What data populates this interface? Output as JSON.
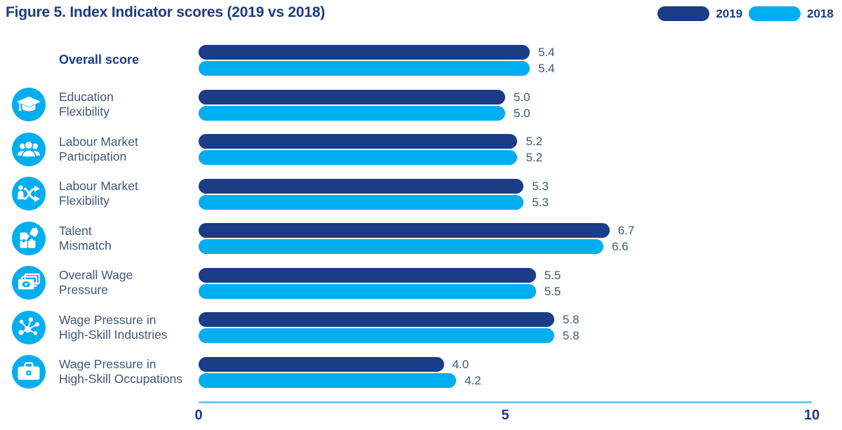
{
  "title": "Figure 5. Index Indicator scores (2019 vs 2018)",
  "legend": {
    "items": [
      {
        "label": "2019",
        "color": "#1B3C86"
      },
      {
        "label": "2018",
        "color": "#00AEEF"
      }
    ]
  },
  "chart_data": {
    "type": "bar",
    "orientation": "horizontal",
    "title": "Figure 5. Index Indicator scores (2019 vs 2018)",
    "categories": [
      "Overall score",
      "Education Flexibility",
      "Labour Market Participation",
      "Labour Market Flexibility",
      "Talent Mismatch",
      "Overall Wage Pressure",
      "Wage Pressure in High-Skill Industries",
      "Wage Pressure in High-Skill Occupations"
    ],
    "series": [
      {
        "name": "2019",
        "color": "#1B3C86",
        "values": [
          5.4,
          5.0,
          5.2,
          5.3,
          6.7,
          5.5,
          5.8,
          4.0
        ]
      },
      {
        "name": "2018",
        "color": "#00AEEF",
        "values": [
          5.4,
          5.0,
          5.2,
          5.3,
          6.6,
          5.5,
          5.8,
          4.2
        ]
      }
    ],
    "xlim": [
      0,
      10
    ],
    "xticks": [
      0,
      5,
      10
    ],
    "xtick_labels": [
      "0",
      "5",
      "10"
    ],
    "value_labels": true,
    "legend_position": "top-right",
    "grid": false
  },
  "rows": [
    {
      "lines": [
        "Overall score"
      ],
      "icon": null,
      "emphasis": true
    },
    {
      "lines": [
        "Education",
        "Flexibility"
      ],
      "icon": "graduation-cap",
      "emphasis": false
    },
    {
      "lines": [
        "Labour Market",
        "Participation"
      ],
      "icon": "people-group",
      "emphasis": false
    },
    {
      "lines": [
        "Labour Market",
        "Flexibility"
      ],
      "icon": "person-shuffle-arrows",
      "emphasis": false
    },
    {
      "lines": [
        "Talent",
        "Mismatch"
      ],
      "icon": "puzzle-pieces",
      "emphasis": false
    },
    {
      "lines": [
        "Overall Wage",
        "Pressure"
      ],
      "icon": "banknotes",
      "emphasis": false
    },
    {
      "lines": [
        "Wage Pressure in",
        "High-Skill Industries"
      ],
      "icon": "network-nodes",
      "emphasis": false
    },
    {
      "lines": [
        "Wage Pressure in",
        "High-Skill Occupations"
      ],
      "icon": "briefcase",
      "emphasis": false
    }
  ],
  "colors": {
    "accent_dark": "#1B3C86",
    "accent_cyan": "#00AEEF",
    "label_text": "#3E5878",
    "axis_line": "#66CBF3"
  }
}
